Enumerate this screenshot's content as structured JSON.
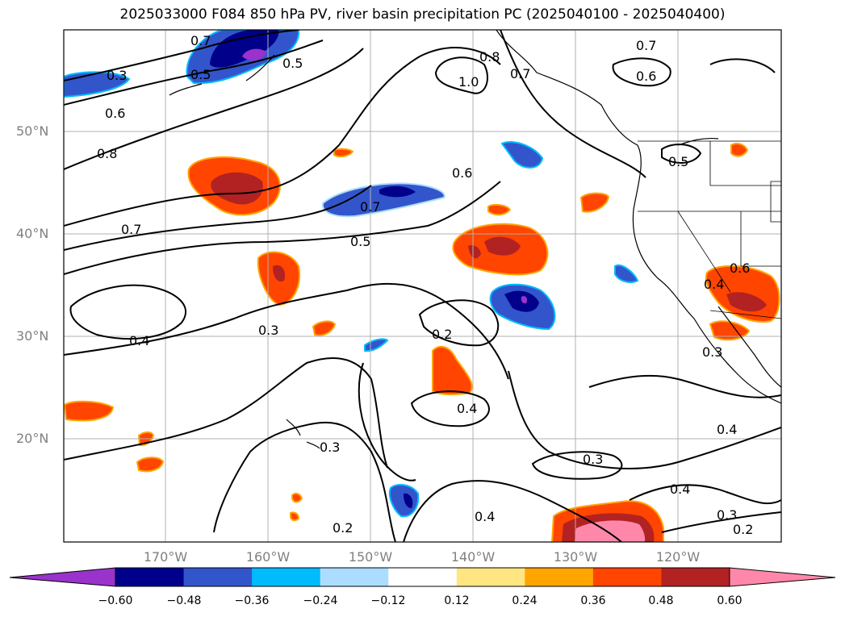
{
  "title": "2025033000 F084 850 hPa PV, river basin precipitation PC (2025040100 - 2025040400)",
  "map": {
    "lat_labels": [
      "50°N",
      "40°N",
      "30°N",
      "20°N"
    ],
    "lon_labels": [
      "170°W",
      "160°W",
      "150°W",
      "140°W",
      "130°W",
      "120°W"
    ],
    "contour_labels": [
      "0.3",
      "0.6",
      "0.8",
      "0.7",
      "0.4",
      "0.3",
      "0.5",
      "0.5",
      "0.6",
      "0.7",
      "0.5",
      "0.2",
      "0.4",
      "0.3",
      "0.3",
      "0.4",
      "0.4",
      "0.2",
      "0.4",
      "0.3",
      "0.2",
      "0.8",
      "1.0",
      "0.7",
      "0.7",
      "0.6",
      "0.5",
      "0.4",
      "0.3",
      "0.7",
      "0.6"
    ]
  },
  "colorbar": {
    "ticks": [
      "−0.60",
      "−0.48",
      "−0.36",
      "−0.24",
      "−0.12",
      "0.12",
      "0.24",
      "0.36",
      "0.48",
      "0.60"
    ],
    "colors": [
      "#9933cc",
      "#00008b",
      "#3355cc",
      "#00bbff",
      "#aaddff",
      "#ffffff",
      "#ffe680",
      "#ffa500",
      "#ff4500",
      "#b22222",
      "#ff88aa",
      "#ff88aa"
    ]
  }
}
